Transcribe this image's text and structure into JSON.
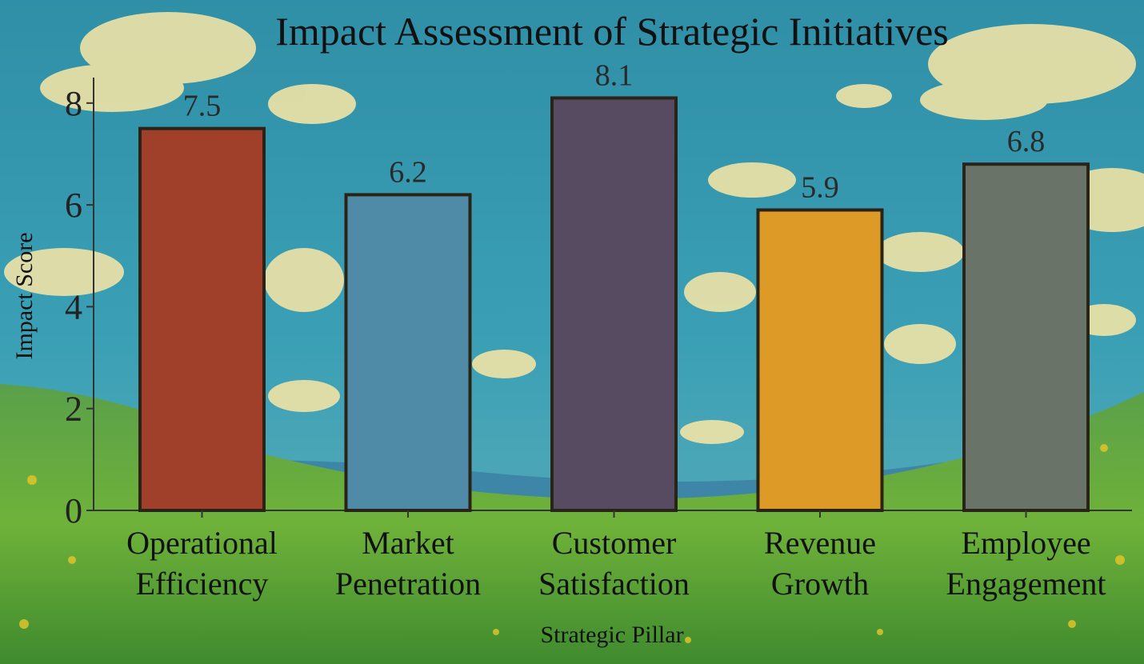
{
  "chart_data": {
    "type": "bar",
    "title": "Impact Assessment of Strategic Initiatives",
    "xlabel": "Strategic Pillar",
    "ylabel": "Impact Score",
    "categories": [
      [
        "Operational",
        "Efficiency"
      ],
      [
        "Market",
        "Penetration"
      ],
      [
        "Customer",
        "Satisfaction"
      ],
      [
        "Revenue",
        "Growth"
      ],
      [
        "Employee",
        "Engagement"
      ]
    ],
    "values": [
      7.5,
      6.2,
      8.1,
      5.9,
      6.8
    ],
    "value_labels": [
      "7.5",
      "6.2",
      "8.1",
      "5.9",
      "6.8"
    ],
    "colors": [
      "#a0402a",
      "#4f8ba6",
      "#574b62",
      "#dd9a26",
      "#6a7367"
    ],
    "yticks": [
      0,
      2,
      4,
      6,
      8
    ],
    "ylim": [
      0,
      8.5
    ],
    "grid": false,
    "legend": "none"
  }
}
